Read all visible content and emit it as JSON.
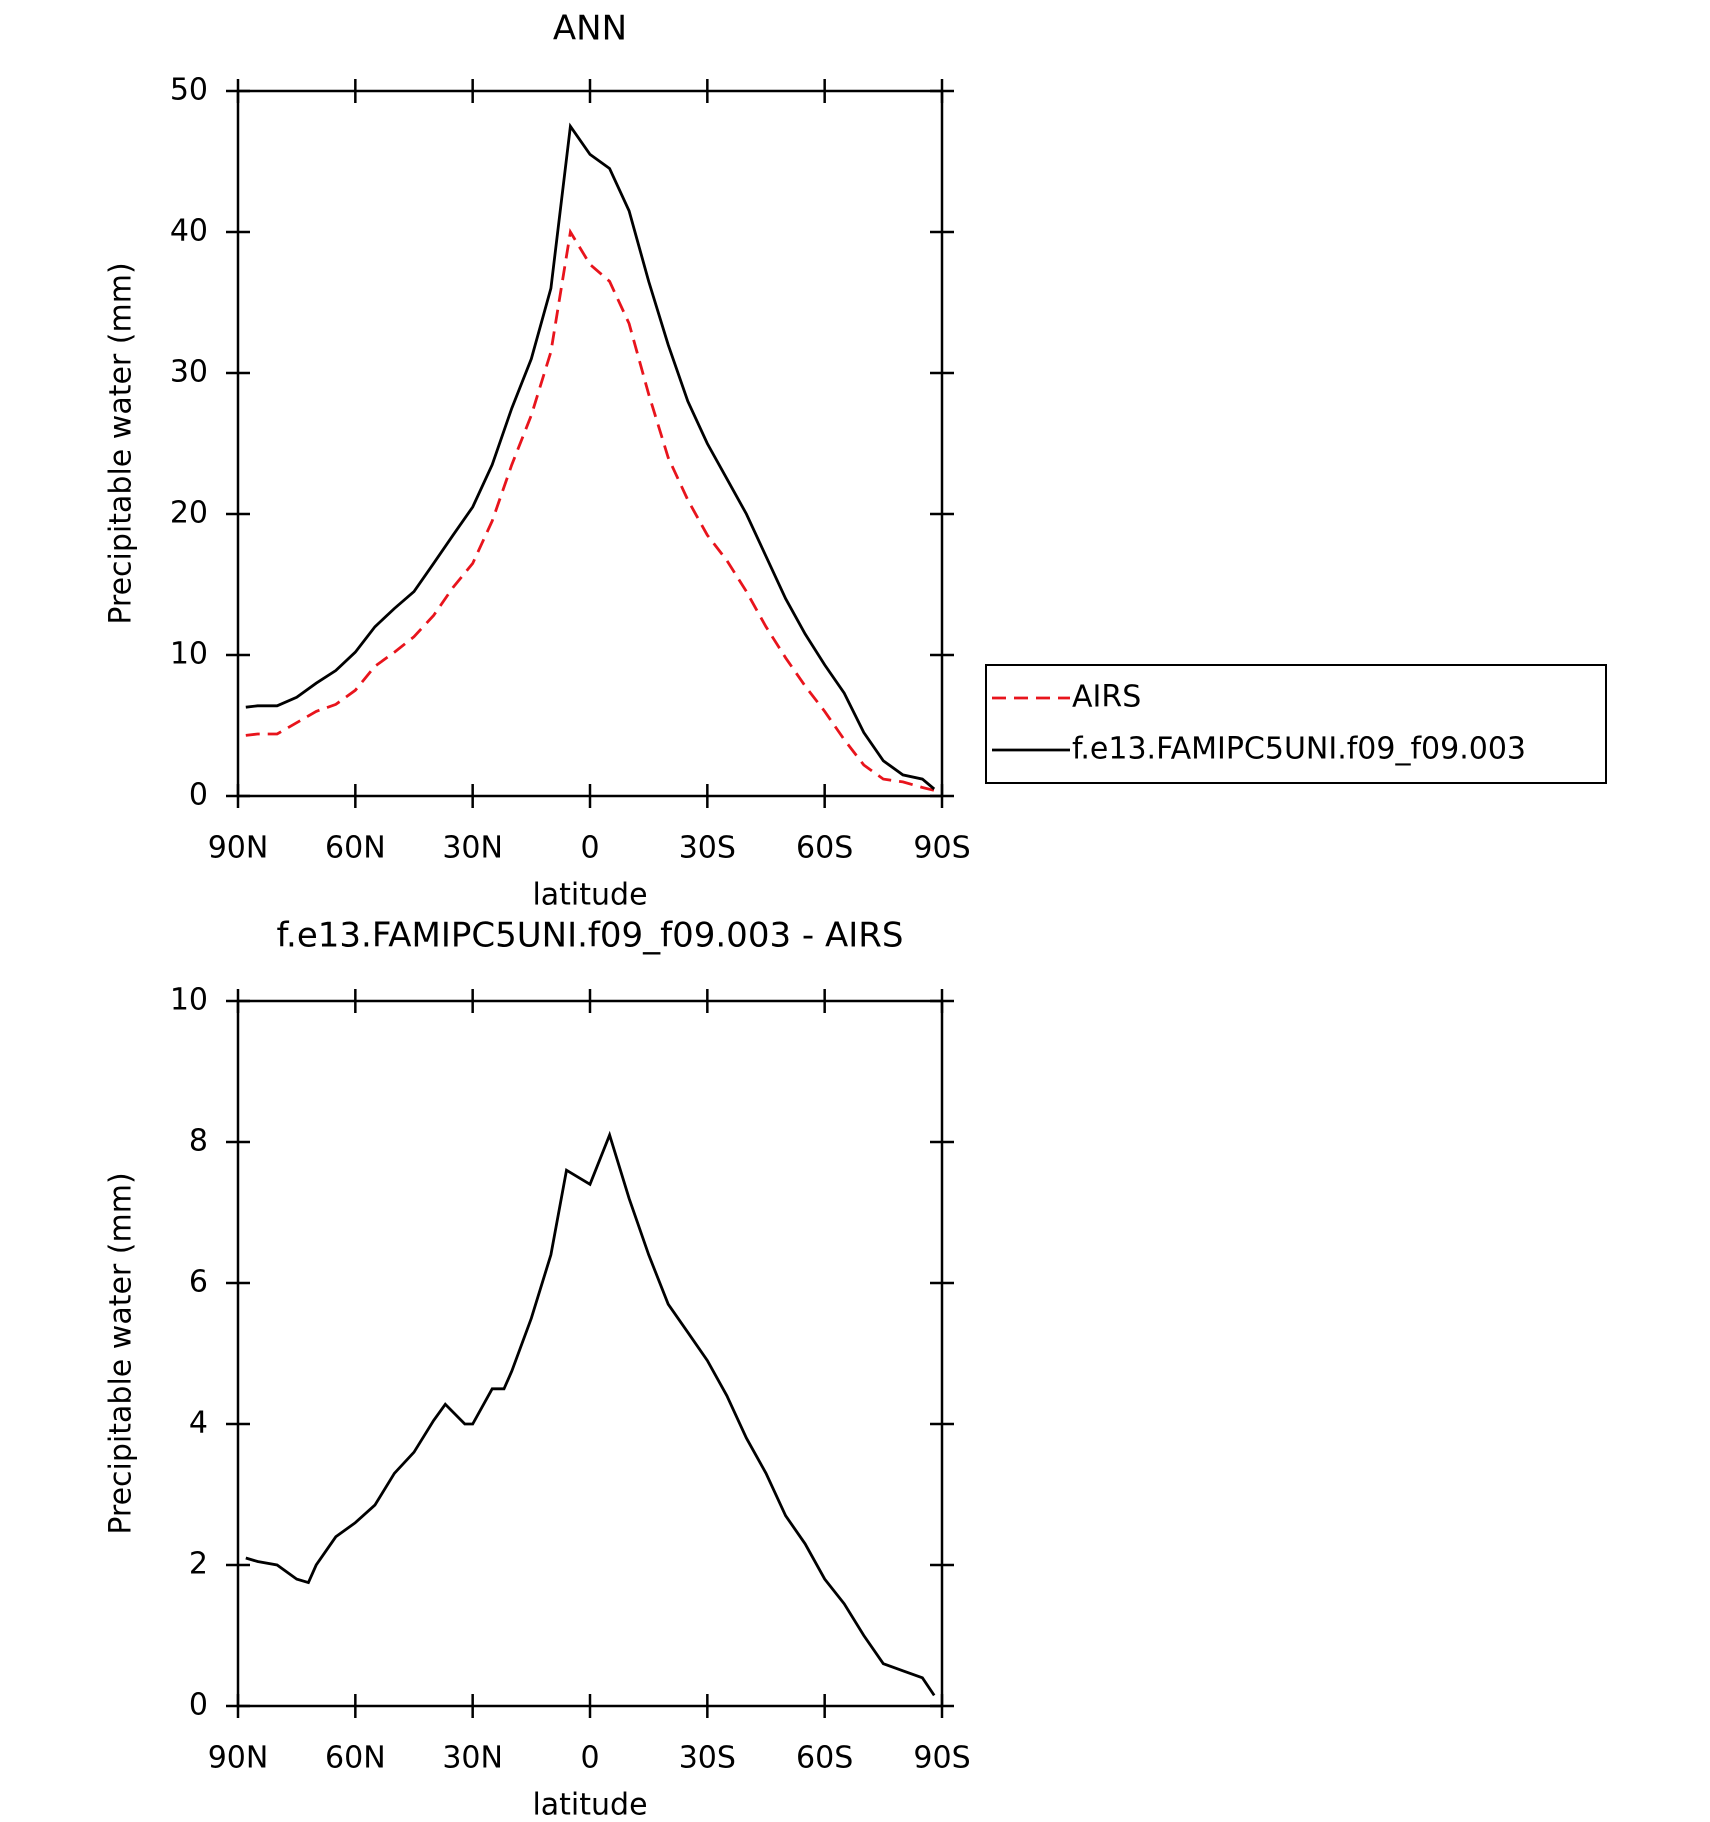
{
  "chart_data": [
    {
      "type": "line",
      "title": "ANN",
      "xlabel": "latitude",
      "ylabel": "Precipitable water (mm)",
      "xlim": [
        90,
        -90
      ],
      "xticks": [
        {
          "value": 90,
          "label": "90N"
        },
        {
          "value": 60,
          "label": "60N"
        },
        {
          "value": 30,
          "label": "30N"
        },
        0,
        {
          "value": -30,
          "label": "30S"
        },
        {
          "value": -60,
          "label": "60S"
        },
        {
          "value": -90,
          "label": "90S"
        }
      ],
      "ylim": [
        0,
        50
      ],
      "yticks": [
        0,
        10,
        20,
        30,
        40,
        50
      ],
      "legend": "right",
      "x": [
        88,
        85,
        80,
        75,
        70,
        65,
        60,
        55,
        50,
        45,
        40,
        35,
        30,
        25,
        20,
        15,
        10,
        5,
        0,
        -5,
        -10,
        -15,
        -20,
        -25,
        -30,
        -35,
        -40,
        -45,
        -50,
        -55,
        -60,
        -65,
        -70,
        -75,
        -80,
        -85,
        -88
      ],
      "series": [
        {
          "name": "AIRS",
          "color": "#e8141c",
          "dash": true,
          "values": [
            4.3,
            4.4,
            4.4,
            5.2,
            6.0,
            6.5,
            7.5,
            9.2,
            10.2,
            11.3,
            12.8,
            14.8,
            16.5,
            19.5,
            23.5,
            27,
            31.5,
            40,
            37.7,
            36.5,
            33.5,
            28.5,
            24,
            21,
            18.5,
            16.7,
            14.5,
            12,
            9.8,
            7.8,
            6,
            4,
            2.2,
            1.2,
            1.0,
            0.6,
            0.4
          ]
        },
        {
          "name": "f.e13.FAMIPC5UNI.f09_f09.003",
          "color": "#000000",
          "dash": false,
          "values": [
            6.3,
            6.4,
            6.4,
            7.0,
            8.0,
            8.9,
            10.2,
            12.0,
            13.3,
            14.5,
            16.5,
            18.5,
            20.5,
            23.5,
            27.5,
            31,
            36,
            47.5,
            45.5,
            44.5,
            41.5,
            36.5,
            32,
            28,
            25,
            22.5,
            20,
            17,
            14,
            11.5,
            9.3,
            7.3,
            4.5,
            2.5,
            1.5,
            1.2,
            0.5
          ]
        }
      ]
    },
    {
      "type": "line",
      "title": "f.e13.FAMIPC5UNI.f09_f09.003 - AIRS",
      "xlabel": "latitude",
      "ylabel": "Precipitable water (mm)",
      "xlim": [
        90,
        -90
      ],
      "xticks": [
        {
          "value": 90,
          "label": "90N"
        },
        {
          "value": 60,
          "label": "60N"
        },
        {
          "value": 30,
          "label": "30N"
        },
        0,
        {
          "value": -30,
          "label": "30S"
        },
        {
          "value": -60,
          "label": "60S"
        },
        {
          "value": -90,
          "label": "90S"
        }
      ],
      "ylim": [
        0,
        10
      ],
      "yticks": [
        0,
        2,
        4,
        6,
        8,
        10
      ],
      "x": [
        88,
        85,
        80,
        75,
        72,
        70,
        65,
        60,
        55,
        50,
        45,
        40,
        37,
        32,
        30,
        25,
        22,
        20,
        15,
        10,
        6,
        0,
        -5,
        -10,
        -15,
        -20,
        -25,
        -30,
        -35,
        -40,
        -45,
        -50,
        -55,
        -60,
        -65,
        -70,
        -75,
        -80,
        -85,
        -88
      ],
      "series": [
        {
          "name": "f.e13.FAMIPC5UNI.f09_f09.003 - AIRS",
          "color": "#000000",
          "dash": false,
          "values": [
            2.1,
            2.05,
            2.0,
            1.8,
            1.75,
            2.0,
            2.4,
            2.6,
            2.85,
            3.3,
            3.6,
            4.05,
            4.28,
            4.0,
            4.0,
            4.5,
            4.5,
            4.75,
            5.5,
            6.4,
            7.6,
            7.4,
            8.1,
            7.2,
            6.4,
            5.7,
            5.3,
            4.9,
            4.4,
            3.8,
            3.3,
            2.7,
            2.3,
            1.8,
            1.45,
            1.0,
            0.6,
            0.5,
            0.4,
            0.15
          ]
        }
      ]
    }
  ]
}
